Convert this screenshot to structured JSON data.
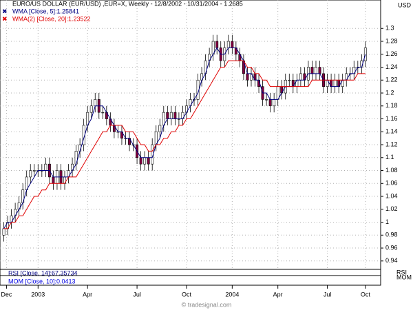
{
  "chart_data": {
    "type": "candlestick",
    "title": "EURO/US DOLLAR (EUR/USD) ,EUR=X, Weekly - 12/8/2002 - 10/31/2004 - 1.2685",
    "unit_label": "USD",
    "footer": "© tradesignal.com",
    "up_color": "#ffffff",
    "down_color": "#800040",
    "grid": true,
    "xlim": [
      -1,
      99
    ],
    "xticks": [
      {
        "value": 0.7,
        "label": "Dec"
      },
      {
        "value": 9,
        "label": "2003"
      },
      {
        "value": 22,
        "label": "Apr"
      },
      {
        "value": 35,
        "label": "Jul"
      },
      {
        "value": 48,
        "label": "Oct"
      },
      {
        "value": 60,
        "label": "2004"
      },
      {
        "value": 72,
        "label": "Apr"
      },
      {
        "value": 85,
        "label": "Jul"
      },
      {
        "value": 95,
        "label": "Oct"
      }
    ],
    "ylim": [
      0.927,
      1.344
    ],
    "yticks": [
      0.94,
      0.96,
      0.98,
      1,
      1.02,
      1.04,
      1.06,
      1.08,
      1.1,
      1.12,
      1.14,
      1.16,
      1.18,
      1.2,
      1.22,
      1.24,
      1.26,
      1.28,
      1.3
    ],
    "open": [
      0.98,
      0.99,
      1.0,
      1.01,
      1.02,
      1.03,
      1.05,
      1.07,
      1.08,
      1.08,
      1.08,
      1.08,
      1.09,
      1.07,
      1.06,
      1.08,
      1.06,
      1.07,
      1.08,
      1.09,
      1.11,
      1.12,
      1.15,
      1.17,
      1.18,
      1.19,
      1.17,
      1.17,
      1.16,
      1.15,
      1.14,
      1.14,
      1.13,
      1.13,
      1.12,
      1.12,
      1.1,
      1.09,
      1.1,
      1.09,
      1.12,
      1.14,
      1.15,
      1.17,
      1.16,
      1.17,
      1.16,
      1.16,
      1.17,
      1.18,
      1.19,
      1.19,
      1.22,
      1.23,
      1.25,
      1.26,
      1.28,
      1.27,
      1.25,
      1.27,
      1.28,
      1.27,
      1.26,
      1.25,
      1.23,
      1.22,
      1.23,
      1.22,
      1.21,
      1.19,
      1.19,
      1.18,
      1.19,
      1.21,
      1.2,
      1.22,
      1.22,
      1.21,
      1.22,
      1.23,
      1.22,
      1.24,
      1.23,
      1.24,
      1.23,
      1.21,
      1.22,
      1.21,
      1.22,
      1.21,
      1.22,
      1.23,
      1.23,
      1.24,
      1.24,
      1.25
    ],
    "high": [
      1.0,
      1.01,
      1.02,
      1.03,
      1.04,
      1.06,
      1.08,
      1.09,
      1.09,
      1.09,
      1.09,
      1.1,
      1.1,
      1.08,
      1.09,
      1.09,
      1.08,
      1.09,
      1.1,
      1.12,
      1.13,
      1.16,
      1.18,
      1.19,
      1.2,
      1.2,
      1.18,
      1.18,
      1.17,
      1.16,
      1.15,
      1.15,
      1.14,
      1.14,
      1.13,
      1.13,
      1.11,
      1.11,
      1.11,
      1.13,
      1.15,
      1.16,
      1.18,
      1.18,
      1.18,
      1.18,
      1.17,
      1.18,
      1.19,
      1.2,
      1.2,
      1.23,
      1.24,
      1.26,
      1.27,
      1.29,
      1.29,
      1.28,
      1.28,
      1.29,
      1.29,
      1.28,
      1.27,
      1.26,
      1.24,
      1.24,
      1.24,
      1.23,
      1.22,
      1.2,
      1.2,
      1.2,
      1.22,
      1.22,
      1.23,
      1.23,
      1.23,
      1.23,
      1.24,
      1.24,
      1.25,
      1.25,
      1.25,
      1.25,
      1.24,
      1.23,
      1.23,
      1.23,
      1.23,
      1.23,
      1.24,
      1.24,
      1.25,
      1.25,
      1.26,
      1.28
    ],
    "low": [
      0.97,
      0.98,
      0.99,
      1.0,
      1.01,
      1.02,
      1.04,
      1.06,
      1.07,
      1.07,
      1.07,
      1.07,
      1.06,
      1.05,
      1.05,
      1.05,
      1.05,
      1.06,
      1.07,
      1.08,
      1.1,
      1.11,
      1.14,
      1.16,
      1.17,
      1.16,
      1.16,
      1.15,
      1.14,
      1.13,
      1.13,
      1.12,
      1.12,
      1.11,
      1.11,
      1.09,
      1.08,
      1.08,
      1.08,
      1.08,
      1.11,
      1.13,
      1.14,
      1.15,
      1.15,
      1.15,
      1.15,
      1.15,
      1.16,
      1.17,
      1.18,
      1.18,
      1.21,
      1.22,
      1.24,
      1.25,
      1.26,
      1.24,
      1.24,
      1.26,
      1.26,
      1.25,
      1.24,
      1.22,
      1.21,
      1.21,
      1.21,
      1.2,
      1.18,
      1.18,
      1.17,
      1.17,
      1.18,
      1.19,
      1.19,
      1.21,
      1.2,
      1.2,
      1.21,
      1.21,
      1.21,
      1.22,
      1.22,
      1.22,
      1.2,
      1.2,
      1.2,
      1.2,
      1.2,
      1.2,
      1.21,
      1.22,
      1.22,
      1.23,
      1.23,
      1.24
    ],
    "close": [
      0.99,
      1.0,
      1.01,
      1.02,
      1.03,
      1.05,
      1.07,
      1.08,
      1.08,
      1.08,
      1.08,
      1.09,
      1.07,
      1.06,
      1.08,
      1.06,
      1.07,
      1.08,
      1.09,
      1.11,
      1.12,
      1.15,
      1.17,
      1.18,
      1.19,
      1.17,
      1.17,
      1.16,
      1.15,
      1.14,
      1.14,
      1.13,
      1.13,
      1.12,
      1.12,
      1.1,
      1.09,
      1.1,
      1.09,
      1.12,
      1.14,
      1.15,
      1.17,
      1.16,
      1.17,
      1.16,
      1.16,
      1.17,
      1.18,
      1.19,
      1.19,
      1.22,
      1.23,
      1.25,
      1.26,
      1.28,
      1.27,
      1.25,
      1.27,
      1.28,
      1.27,
      1.26,
      1.25,
      1.23,
      1.22,
      1.23,
      1.22,
      1.21,
      1.19,
      1.19,
      1.18,
      1.19,
      1.21,
      1.2,
      1.22,
      1.22,
      1.21,
      1.22,
      1.23,
      1.22,
      1.24,
      1.23,
      1.24,
      1.23,
      1.21,
      1.22,
      1.21,
      1.22,
      1.21,
      1.22,
      1.23,
      1.23,
      1.24,
      1.24,
      1.25,
      1.27
    ],
    "series": [
      {
        "name": "WMA [Close, 5]:1.25841",
        "color": "#000080",
        "values": [
          0.99,
          1.0,
          1.0,
          1.01,
          1.02,
          1.03,
          1.05,
          1.06,
          1.07,
          1.08,
          1.08,
          1.08,
          1.08,
          1.07,
          1.07,
          1.07,
          1.07,
          1.07,
          1.08,
          1.09,
          1.11,
          1.13,
          1.15,
          1.16,
          1.18,
          1.18,
          1.18,
          1.17,
          1.16,
          1.15,
          1.14,
          1.14,
          1.13,
          1.13,
          1.12,
          1.11,
          1.1,
          1.1,
          1.1,
          1.1,
          1.12,
          1.13,
          1.15,
          1.16,
          1.16,
          1.16,
          1.16,
          1.16,
          1.17,
          1.18,
          1.19,
          1.2,
          1.22,
          1.23,
          1.25,
          1.26,
          1.27,
          1.26,
          1.26,
          1.27,
          1.27,
          1.27,
          1.26,
          1.25,
          1.23,
          1.23,
          1.22,
          1.22,
          1.2,
          1.2,
          1.19,
          1.19,
          1.19,
          1.2,
          1.21,
          1.21,
          1.21,
          1.22,
          1.22,
          1.22,
          1.23,
          1.23,
          1.23,
          1.23,
          1.22,
          1.22,
          1.21,
          1.21,
          1.21,
          1.22,
          1.22,
          1.23,
          1.23,
          1.24,
          1.24,
          1.26
        ]
      },
      {
        "name": "WMA(2) [Close, 20]:1.23522",
        "color": "#e00000",
        "values": [
          0.99,
          0.99,
          1.0,
          1.0,
          1.01,
          1.01,
          1.02,
          1.03,
          1.04,
          1.04,
          1.05,
          1.05,
          1.06,
          1.06,
          1.06,
          1.06,
          1.06,
          1.07,
          1.07,
          1.07,
          1.08,
          1.09,
          1.1,
          1.11,
          1.12,
          1.13,
          1.14,
          1.14,
          1.15,
          1.15,
          1.15,
          1.15,
          1.14,
          1.14,
          1.14,
          1.13,
          1.12,
          1.12,
          1.11,
          1.11,
          1.12,
          1.12,
          1.13,
          1.13,
          1.14,
          1.14,
          1.15,
          1.15,
          1.16,
          1.16,
          1.17,
          1.18,
          1.19,
          1.2,
          1.21,
          1.22,
          1.23,
          1.24,
          1.24,
          1.25,
          1.25,
          1.25,
          1.25,
          1.25,
          1.24,
          1.24,
          1.23,
          1.23,
          1.22,
          1.22,
          1.21,
          1.21,
          1.21,
          1.21,
          1.21,
          1.21,
          1.21,
          1.21,
          1.21,
          1.21,
          1.21,
          1.22,
          1.22,
          1.22,
          1.22,
          1.22,
          1.22,
          1.22,
          1.22,
          1.22,
          1.22,
          1.22,
          1.22,
          1.23,
          1.23,
          1.23
        ]
      }
    ],
    "panels": [
      {
        "label": "RSI",
        "legend": "RSI [Close, 14]:67.35734",
        "color": "#000080"
      },
      {
        "label": "MOM",
        "legend": "MOM [Close, 10]:0.0413",
        "color": "#0000e0"
      }
    ]
  }
}
